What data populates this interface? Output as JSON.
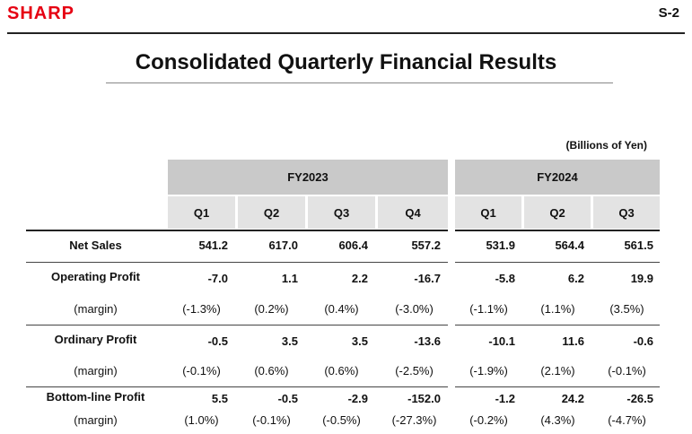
{
  "header": {
    "logo_text": "SHARP",
    "page_number": "S-2"
  },
  "title": "Consolidated Quarterly Financial Results",
  "unit": "(Billions of Yen)",
  "table": {
    "fiscal_years": [
      {
        "label": "FY2023",
        "quarters": [
          "Q1",
          "Q2",
          "Q3",
          "Q4"
        ]
      },
      {
        "label": "FY2024",
        "quarters": [
          "Q1",
          "Q2",
          "Q3"
        ]
      }
    ],
    "rows": [
      {
        "label": "Net Sales",
        "values": [
          "541.2",
          "617.0",
          "606.4",
          "557.2",
          "531.9",
          "564.4",
          "561.5"
        ]
      },
      {
        "label": "Operating Profit",
        "values": [
          "-7.0",
          "1.1",
          "2.2",
          "-16.7",
          "-5.8",
          "6.2",
          "19.9"
        ]
      },
      {
        "label": "(margin)",
        "values": [
          "(-1.3%)",
          "(0.2%)",
          "(0.4%)",
          "(-3.0%)",
          "(-1.1%)",
          "(1.1%)",
          "(3.5%)"
        ]
      },
      {
        "label": "Ordinary Profit",
        "values": [
          "-0.5",
          "3.5",
          "3.5",
          "-13.6",
          "-10.1",
          "11.6",
          "-0.6"
        ]
      },
      {
        "label": "(margin)",
        "values": [
          "(-0.1%)",
          "(0.6%)",
          "(0.6%)",
          "(-2.5%)",
          "(-1.9%)",
          "(2.1%)",
          "(-0.1%)"
        ]
      },
      {
        "label": "Bottom-line Profit",
        "values": [
          "5.5",
          "-0.5",
          "-2.9",
          "-152.0",
          "-1.2",
          "24.2",
          "-26.5"
        ]
      },
      {
        "label": "(margin)",
        "values": [
          "(1.0%)",
          "(-0.1%)",
          "(-0.5%)",
          "(-27.3%)",
          "(-0.2%)",
          "(4.3%)",
          "(-4.7%)"
        ]
      }
    ]
  }
}
